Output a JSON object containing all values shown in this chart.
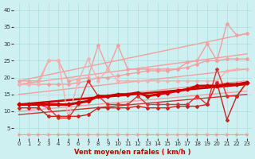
{
  "xlabel": "Vent moyen/en rafales ( km/h )",
  "xlim": [
    -0.5,
    23.5
  ],
  "ylim": [
    2,
    42
  ],
  "yticks": [
    5,
    10,
    15,
    20,
    25,
    30,
    35,
    40
  ],
  "xticks": [
    0,
    1,
    2,
    3,
    4,
    5,
    6,
    7,
    8,
    9,
    10,
    11,
    12,
    13,
    14,
    15,
    16,
    17,
    18,
    19,
    20,
    21,
    22,
    23
  ],
  "bg_color": "#cff0f0",
  "grid_color": "#aadddd",
  "series": [
    {
      "x": [
        0,
        23
      ],
      "y": [
        19.0,
        33.0
      ],
      "color": "#f0a0a0",
      "lw": 1.0,
      "marker": null,
      "zorder": 2
    },
    {
      "x": [
        0,
        23
      ],
      "y": [
        18.0,
        27.0
      ],
      "color": "#f0a0a0",
      "lw": 1.0,
      "marker": null,
      "zorder": 2
    },
    {
      "x": [
        0,
        23
      ],
      "y": [
        15.0,
        22.5
      ],
      "color": "#f0a0a0",
      "lw": 1.0,
      "marker": null,
      "zorder": 2
    },
    {
      "x": [
        0,
        23
      ],
      "y": [
        12.0,
        19.0
      ],
      "color": "#f0a0a0",
      "lw": 1.0,
      "marker": null,
      "zorder": 2
    },
    {
      "x": [
        0,
        23
      ],
      "y": [
        10.0,
        16.0
      ],
      "color": "#f0a0a0",
      "lw": 1.0,
      "marker": null,
      "zorder": 2
    },
    {
      "x": [
        0,
        23
      ],
      "y": [
        12.0,
        18.0
      ],
      "color": "#cc0000",
      "lw": 1.8,
      "marker": null,
      "zorder": 3
    },
    {
      "x": [
        0,
        23
      ],
      "y": [
        9.0,
        15.0
      ],
      "color": "#cc3333",
      "lw": 1.0,
      "marker": null,
      "zorder": 3
    },
    {
      "x": [
        0,
        1,
        2,
        3,
        4,
        5,
        6,
        7,
        8,
        9,
        10,
        11,
        12,
        13,
        14,
        15,
        16,
        17,
        18,
        19,
        20,
        21,
        22,
        23
      ],
      "y": [
        19.0,
        19.0,
        19.0,
        25.0,
        25.0,
        19.0,
        19.5,
        20.0,
        29.5,
        22.5,
        29.5,
        22.5,
        22.5,
        22.5,
        22.5,
        22.5,
        22.5,
        24.5,
        25.0,
        30.0,
        25.0,
        36.0,
        32.5,
        33.0
      ],
      "color": "#f0a0a0",
      "lw": 1.0,
      "marker": "D",
      "ms": 2.0,
      "zorder": 4
    },
    {
      "x": [
        0,
        1,
        2,
        3,
        4,
        5,
        6,
        7,
        8,
        9,
        10,
        11,
        12,
        13,
        14,
        15,
        16,
        17,
        18,
        19,
        20,
        21,
        22,
        23
      ],
      "y": [
        18.0,
        18.0,
        18.0,
        18.0,
        18.0,
        18.0,
        18.5,
        19.0,
        20.0,
        20.0,
        20.5,
        21.0,
        21.5,
        22.0,
        22.0,
        22.0,
        22.5,
        23.0,
        24.0,
        25.0,
        25.0,
        25.5,
        25.5,
        25.5
      ],
      "color": "#f0a0a0",
      "lw": 1.0,
      "marker": "D",
      "ms": 2.0,
      "zorder": 4
    },
    {
      "x": [
        0,
        1,
        2,
        3,
        4,
        5,
        6,
        7,
        8,
        9,
        10,
        11,
        12,
        13,
        14,
        15,
        16,
        17,
        18,
        19,
        20,
        21,
        22,
        23
      ],
      "y": [
        18.0,
        18.0,
        18.0,
        25.0,
        25.0,
        8.0,
        19.0,
        25.5,
        19.0,
        22.5,
        19.0,
        19.0,
        19.0,
        19.0,
        19.0,
        19.0,
        19.0,
        19.0,
        19.0,
        19.0,
        19.0,
        22.0,
        22.5,
        22.5
      ],
      "color": "#f5b0b0",
      "lw": 1.0,
      "marker": "D",
      "ms": 2.0,
      "zorder": 4
    },
    {
      "x": [
        0,
        1,
        2,
        3,
        4,
        5,
        6,
        7,
        8,
        9,
        10,
        11,
        12,
        13,
        14,
        15,
        16,
        17,
        18,
        19,
        20,
        21,
        22,
        23
      ],
      "y": [
        12.0,
        12.0,
        12.0,
        11.0,
        8.0,
        8.0,
        12.0,
        19.0,
        14.5,
        12.0,
        12.0,
        12.0,
        14.5,
        12.0,
        12.0,
        12.0,
        12.0,
        12.0,
        14.5,
        12.0,
        22.5,
        14.5,
        14.5,
        18.5
      ],
      "color": "#e03030",
      "lw": 1.0,
      "marker": "D",
      "ms": 2.0,
      "zorder": 5
    },
    {
      "x": [
        0,
        1,
        2,
        3,
        4,
        5,
        6,
        7,
        8,
        9,
        10,
        11,
        12,
        13,
        14,
        15,
        16,
        17,
        18,
        19,
        20,
        21,
        22,
        23
      ],
      "y": [
        11.0,
        11.0,
        11.0,
        8.5,
        8.5,
        8.5,
        8.5,
        9.0,
        11.0,
        11.0,
        11.0,
        11.0,
        11.5,
        11.0,
        11.0,
        11.0,
        11.5,
        11.5,
        11.5,
        12.0,
        18.5,
        7.5,
        14.5,
        18.5
      ],
      "color": "#cc2222",
      "lw": 1.0,
      "marker": "D",
      "ms": 2.0,
      "zorder": 5
    },
    {
      "x": [
        0,
        1,
        2,
        3,
        4,
        5,
        6,
        7,
        8,
        9,
        10,
        11,
        12,
        13,
        14,
        15,
        16,
        17,
        18,
        19,
        20,
        21,
        22,
        23
      ],
      "y": [
        12.0,
        12.0,
        12.0,
        12.0,
        12.0,
        12.0,
        12.5,
        13.0,
        14.5,
        14.5,
        15.0,
        15.0,
        15.5,
        14.5,
        15.0,
        15.5,
        16.0,
        16.5,
        17.5,
        17.5,
        17.5,
        18.0,
        18.0,
        18.5
      ],
      "color": "#cc0000",
      "lw": 2.2,
      "marker": "D",
      "ms": 2.5,
      "zorder": 6
    },
    {
      "x": [
        0,
        1,
        2,
        3,
        4,
        5,
        6,
        7,
        8,
        9,
        10,
        11,
        12,
        13,
        14,
        15,
        16,
        17,
        18,
        19,
        20,
        21,
        22,
        23
      ],
      "y": [
        3.2,
        3.2,
        3.2,
        3.2,
        3.2,
        3.2,
        3.2,
        3.2,
        3.2,
        3.2,
        3.2,
        3.2,
        3.2,
        3.2,
        3.2,
        3.2,
        3.2,
        3.2,
        3.2,
        3.2,
        3.2,
        3.2,
        3.2,
        3.2
      ],
      "color": "#f0a0a0",
      "lw": 0.8,
      "marker": ">",
      "ms": 2.0,
      "zorder": 3
    }
  ]
}
